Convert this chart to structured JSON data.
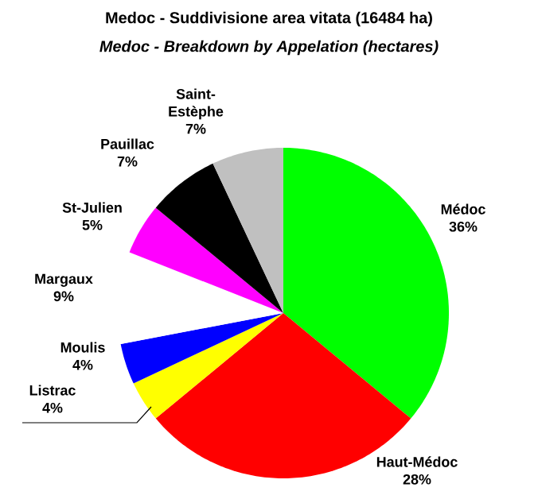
{
  "chart_data": {
    "type": "pie",
    "title": "Medoc - Suddivisione area vitata (16484 ha)",
    "subtitle": "Medoc - Breakdown by Appelation (hectares)",
    "categories": [
      "Médoc",
      "Haut-Médoc",
      "Listrac",
      "Moulis",
      "Margaux",
      "St-Julien",
      "Pauillac",
      "Saint-Estèphe"
    ],
    "values": [
      36,
      28,
      4,
      4,
      9,
      5,
      7,
      7
    ],
    "value_labels": [
      "36%",
      "28%",
      "4%",
      "4%",
      "9%",
      "5%",
      "7%",
      "7%"
    ],
    "colors": [
      "#00ff00",
      "#ff0000",
      "#ffff00",
      "#0000ff",
      "#ffffff",
      "#ff00ff",
      "#000000",
      "#c0c0c0"
    ]
  }
}
